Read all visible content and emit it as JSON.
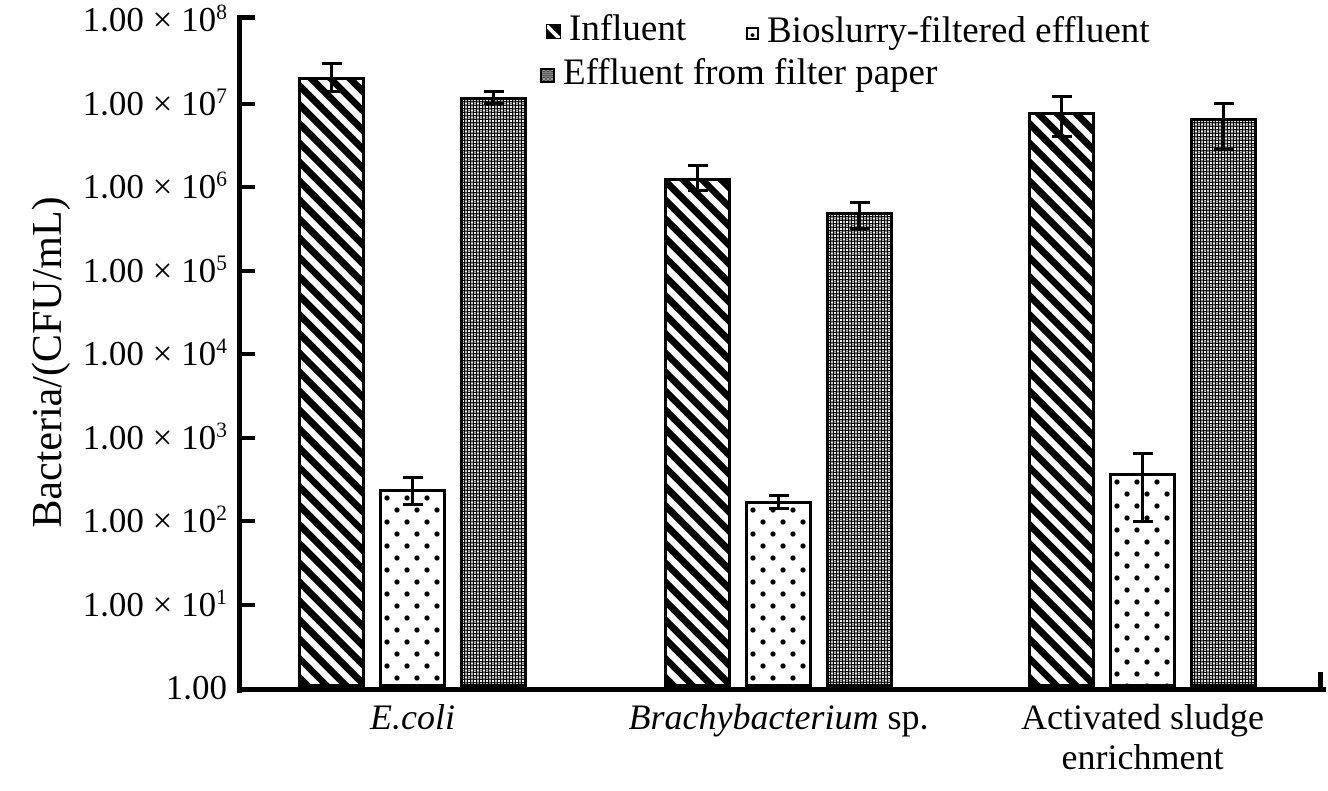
{
  "colors": {
    "ink": "#000000",
    "background": "#ffffff"
  },
  "y_axis": {
    "title": "Bacteria/(CFU/mL)",
    "tick_mantissa": "1.00",
    "times_symbol": "×",
    "tick_exponents": [
      0,
      1,
      2,
      3,
      4,
      5,
      6,
      7,
      8
    ]
  },
  "chart_data": {
    "type": "bar",
    "scale_y": "log10",
    "title": "",
    "xlabel": "",
    "ylabel": "Bacteria/(CFU/mL)",
    "ylim": [
      1.0,
      100000000.0
    ],
    "grid": false,
    "error_bars": true,
    "legend_position": "top-center",
    "categories": [
      "E.coli",
      "Brachybacterium sp.",
      "Activated sludge enrichment"
    ],
    "categories_display": [
      {
        "italic": "E.coli",
        "roman": ""
      },
      {
        "italic": "Brachybacterium",
        "roman": " sp."
      },
      {
        "italic": "",
        "roman": "Activated sludge enrichment"
      }
    ],
    "series": [
      {
        "name": "Influent",
        "pattern": "hatch",
        "values": [
          21000000.0,
          1300000.0,
          8000000.0
        ],
        "error_low": [
          14000000.0,
          920000.0,
          4000000.0
        ],
        "error_high": [
          30000000.0,
          1800000.0,
          12000000.0
        ]
      },
      {
        "name": "Bioslurry-filtered effluent",
        "pattern": "dots",
        "values": [
          240,
          175,
          380
        ],
        "error_low": [
          160,
          140,
          100
        ],
        "error_high": [
          330,
          200,
          650
        ]
      },
      {
        "name": "Effluent from filter paper",
        "pattern": "dense",
        "values": [
          12000000.0,
          500000.0,
          6700000.0
        ],
        "error_low": [
          10000000.0,
          320000.0,
          2800000.0
        ],
        "error_high": [
          14000000.0,
          660000.0,
          10000000.0
        ]
      }
    ]
  }
}
